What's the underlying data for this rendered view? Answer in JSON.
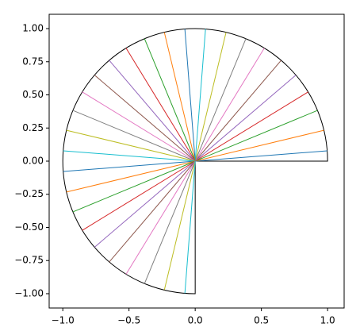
{
  "chart_data": {
    "type": "line",
    "wedge": {
      "center": [
        0,
        0
      ],
      "radius": 1,
      "theta1": 0,
      "theta2": 270,
      "color": "#000000"
    },
    "series": [
      {
        "color": "#1f77b4",
        "x": [
          0,
          0.997
        ],
        "y": [
          0,
          0.078
        ]
      },
      {
        "color": "#ff7f0e",
        "x": [
          0,
          0.972
        ],
        "y": [
          0,
          0.233
        ]
      },
      {
        "color": "#2ca02c",
        "x": [
          0,
          0.924
        ],
        "y": [
          0,
          0.383
        ]
      },
      {
        "color": "#d62728",
        "x": [
          0,
          0.853
        ],
        "y": [
          0,
          0.522
        ]
      },
      {
        "color": "#9467bd",
        "x": [
          0,
          0.76
        ],
        "y": [
          0,
          0.649
        ]
      },
      {
        "color": "#8c564b",
        "x": [
          0,
          0.649
        ],
        "y": [
          0,
          0.76
        ]
      },
      {
        "color": "#e377c2",
        "x": [
          0,
          0.522
        ],
        "y": [
          0,
          0.853
        ]
      },
      {
        "color": "#7f7f7f",
        "x": [
          0,
          0.383
        ],
        "y": [
          0,
          0.924
        ]
      },
      {
        "color": "#bcbd22",
        "x": [
          0,
          0.233
        ],
        "y": [
          0,
          0.972
        ]
      },
      {
        "color": "#17becf",
        "x": [
          0,
          0.078
        ],
        "y": [
          0,
          0.997
        ]
      },
      {
        "color": "#1f77b4",
        "x": [
          0,
          -0.078
        ],
        "y": [
          0,
          0.997
        ]
      },
      {
        "color": "#ff7f0e",
        "x": [
          0,
          -0.233
        ],
        "y": [
          0,
          0.972
        ]
      },
      {
        "color": "#2ca02c",
        "x": [
          0,
          -0.383
        ],
        "y": [
          0,
          0.924
        ]
      },
      {
        "color": "#d62728",
        "x": [
          0,
          -0.522
        ],
        "y": [
          0,
          0.853
        ]
      },
      {
        "color": "#9467bd",
        "x": [
          0,
          -0.649
        ],
        "y": [
          0,
          0.76
        ]
      },
      {
        "color": "#8c564b",
        "x": [
          0,
          -0.76
        ],
        "y": [
          0,
          0.649
        ]
      },
      {
        "color": "#e377c2",
        "x": [
          0,
          -0.853
        ],
        "y": [
          0,
          0.522
        ]
      },
      {
        "color": "#7f7f7f",
        "x": [
          0,
          -0.924
        ],
        "y": [
          0,
          0.383
        ]
      },
      {
        "color": "#bcbd22",
        "x": [
          0,
          -0.972
        ],
        "y": [
          0,
          0.233
        ]
      },
      {
        "color": "#17becf",
        "x": [
          0,
          -0.997
        ],
        "y": [
          0,
          0.078
        ]
      },
      {
        "color": "#1f77b4",
        "x": [
          0,
          -0.997
        ],
        "y": [
          0,
          -0.078
        ]
      },
      {
        "color": "#ff7f0e",
        "x": [
          0,
          -0.972
        ],
        "y": [
          0,
          -0.233
        ]
      },
      {
        "color": "#2ca02c",
        "x": [
          0,
          -0.924
        ],
        "y": [
          0,
          -0.383
        ]
      },
      {
        "color": "#d62728",
        "x": [
          0,
          -0.853
        ],
        "y": [
          0,
          -0.522
        ]
      },
      {
        "color": "#9467bd",
        "x": [
          0,
          -0.76
        ],
        "y": [
          0,
          -0.649
        ]
      },
      {
        "color": "#8c564b",
        "x": [
          0,
          -0.649
        ],
        "y": [
          0,
          -0.76
        ]
      },
      {
        "color": "#e377c2",
        "x": [
          0,
          -0.522
        ],
        "y": [
          0,
          -0.853
        ]
      },
      {
        "color": "#7f7f7f",
        "x": [
          0,
          -0.383
        ],
        "y": [
          0,
          -0.924
        ]
      },
      {
        "color": "#bcbd22",
        "x": [
          0,
          -0.233
        ],
        "y": [
          0,
          -0.972
        ]
      },
      {
        "color": "#17becf",
        "x": [
          0,
          -0.078
        ],
        "y": [
          0,
          -0.997
        ]
      }
    ],
    "xlim": [
      -1.103,
      1.125
    ],
    "ylim": [
      -1.108,
      1.108
    ],
    "xticks": [
      {
        "value": -1,
        "label": "−1.0"
      },
      {
        "value": -0.5,
        "label": "−0.5"
      },
      {
        "value": 0,
        "label": "0.0"
      },
      {
        "value": 0.5,
        "label": "0.5"
      },
      {
        "value": 1,
        "label": "1.0"
      }
    ],
    "yticks": [
      {
        "value": -1,
        "label": "−1.00"
      },
      {
        "value": -0.75,
        "label": "−0.75"
      },
      {
        "value": -0.5,
        "label": "−0.50"
      },
      {
        "value": -0.25,
        "label": "−0.25"
      },
      {
        "value": 0,
        "label": "0.00"
      },
      {
        "value": 0.25,
        "label": "0.25"
      },
      {
        "value": 0.5,
        "label": "0.50"
      },
      {
        "value": 0.75,
        "label": "0.75"
      },
      {
        "value": 1,
        "label": "1.00"
      }
    ]
  }
}
